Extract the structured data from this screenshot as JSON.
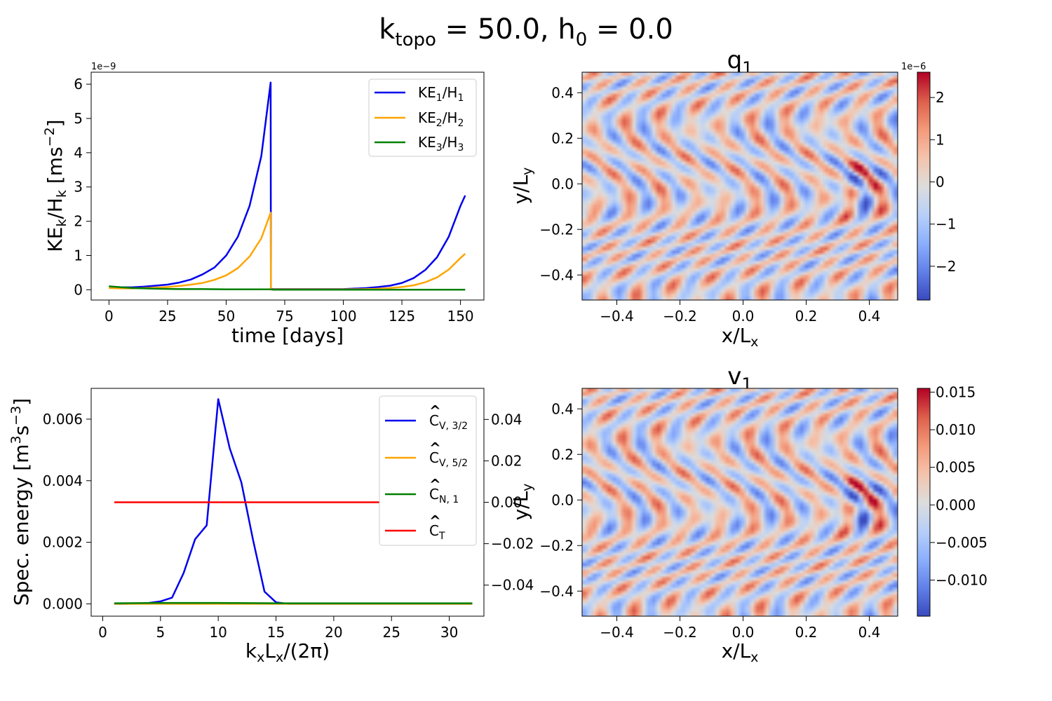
{
  "figure_title": {
    "main": "k",
    "sub1": "topo",
    "rest": " = 50.0, h",
    "sub2": "0",
    "rest2": " = 0.0"
  },
  "chart_data": [
    {
      "type": "line",
      "xlabel": "time   [days]",
      "ylabel": {
        "a": "KE",
        "sub1": "k",
        "b": "/H",
        "sub2": "k",
        "c": "   [ms",
        "sup": "−2",
        "d": "]"
      },
      "offset_text": "1e−9",
      "xlim": [
        -7.6,
        160
      ],
      "ylim": [
        -0.3,
        6.35
      ],
      "xticks": [
        0,
        25,
        50,
        75,
        100,
        125,
        150
      ],
      "yticks": [
        0,
        1,
        2,
        3,
        4,
        5,
        6
      ],
      "grid": false,
      "legend_position": "top-right",
      "series": [
        {
          "name": {
            "a": "KE",
            "s1": "1",
            "b": "/H",
            "s2": "1"
          },
          "color": "#0000ee",
          "x": [
            0,
            5,
            10,
            15,
            20,
            25,
            30,
            35,
            40,
            45,
            50,
            55,
            60,
            65,
            69,
            69.1,
            70,
            80,
            90,
            100,
            110,
            115,
            120,
            125,
            130,
            135,
            140,
            145,
            150,
            152
          ],
          "y": [
            0.1,
            0.07,
            0.07,
            0.09,
            0.12,
            0.15,
            0.21,
            0.3,
            0.45,
            0.65,
            1.0,
            1.55,
            2.45,
            3.9,
            6.05,
            0.03,
            0.02,
            0.02,
            0.02,
            0.02,
            0.05,
            0.08,
            0.12,
            0.2,
            0.34,
            0.58,
            0.95,
            1.55,
            2.45,
            2.75
          ]
        },
        {
          "name": {
            "a": "KE",
            "s1": "2",
            "b": "/H",
            "s2": "2"
          },
          "color": "#ffa500",
          "x": [
            0,
            5,
            10,
            15,
            20,
            25,
            30,
            35,
            40,
            45,
            50,
            55,
            60,
            65,
            69,
            69.1,
            70,
            80,
            90,
            100,
            110,
            115,
            120,
            125,
            130,
            135,
            140,
            145,
            150,
            152
          ],
          "y": [
            0.05,
            0.04,
            0.04,
            0.05,
            0.06,
            0.08,
            0.11,
            0.15,
            0.2,
            0.29,
            0.42,
            0.63,
            0.97,
            1.5,
            2.25,
            0.01,
            0.01,
            0.01,
            0.01,
            0.01,
            0.02,
            0.03,
            0.05,
            0.08,
            0.13,
            0.22,
            0.36,
            0.59,
            0.93,
            1.05
          ]
        },
        {
          "name": {
            "a": "KE",
            "s1": "3",
            "b": "/H",
            "s2": "3"
          },
          "color": "#008000",
          "x": [
            0,
            10,
            20,
            30,
            40,
            50,
            60,
            69,
            70,
            90,
            110,
            130,
            152
          ],
          "y": [
            0.1,
            0.05,
            0.03,
            0.02,
            0.02,
            0.01,
            0.01,
            0.01,
            0.0,
            0.0,
            0.0,
            0.0,
            0.0
          ]
        }
      ]
    },
    {
      "type": "heatmap",
      "title": {
        "a": "q",
        "sub": "1"
      },
      "xlabel": {
        "a": "x/L",
        "sub": "x"
      },
      "ylabel": {
        "a": "y/L",
        "sub": "y"
      },
      "xlim": [
        -0.51,
        0.49
      ],
      "ylim": [
        -0.51,
        0.49
      ],
      "xticks": [
        "−0.4",
        "−0.2",
        "0.0",
        "0.2",
        "0.4"
      ],
      "yticks": [
        "−0.4",
        "−0.2",
        "0.0",
        "0.2",
        "0.4"
      ],
      "colormap": "coolwarm",
      "colorbar": {
        "offset_text": "1e−6",
        "range": [
          -2.8,
          2.6
        ],
        "ticks": [
          "2",
          "1",
          "0",
          "−1",
          "−2"
        ],
        "tick_values": [
          2,
          1,
          0,
          -1,
          -2
        ]
      }
    },
    {
      "type": "line",
      "xlabel": {
        "a": "k",
        "s1": "x",
        "b": "L",
        "s2": "x",
        "c": "/(2π)"
      },
      "ylabel": {
        "a": "Spec.  energy   [m",
        "sup1": "3",
        "b": "s",
        "sup2": "−3",
        "c": "]"
      },
      "xlim": [
        -1,
        33
      ],
      "ylim": [
        -0.0004,
        0.007
      ],
      "xticks": [
        0,
        5,
        10,
        15,
        20,
        25,
        30
      ],
      "yticks": [
        "0.000",
        "0.002",
        "0.004",
        "0.006"
      ],
      "ytick_values": [
        0,
        0.002,
        0.004,
        0.006
      ],
      "secondary_axis": {
        "label": {
          "a": "y/L",
          "sub": "y"
        },
        "ylim": [
          -0.055,
          0.055
        ],
        "yticks": [
          "0.04",
          "0.02",
          "0.00",
          "−0.02",
          "−0.04"
        ],
        "ytick_values": [
          0.04,
          0.02,
          0.0,
          -0.02,
          -0.04
        ]
      },
      "grid": false,
      "legend_position": "top-right",
      "series": [
        {
          "name": {
            "a": "C",
            "sub": "V, 3/2"
          },
          "color": "#0000ee",
          "x": [
            1,
            2,
            3,
            4,
            5,
            6,
            7,
            8,
            9,
            10,
            11,
            12,
            13,
            14,
            15,
            16,
            17,
            20,
            25,
            30,
            32
          ],
          "y": [
            0.0,
            0.0,
            1e-05,
            3e-05,
            8e-05,
            0.0002,
            0.001,
            0.0021,
            0.00255,
            0.00665,
            0.00505,
            0.00395,
            0.0021,
            0.0004,
            5e-05,
            0.0,
            0.0,
            0.0,
            0.0,
            0.0,
            0.0
          ]
        },
        {
          "name": {
            "a": "C",
            "sub": "V, 5/2"
          },
          "color": "#ffa500",
          "x": [
            1,
            32
          ],
          "y": [
            0.0,
            0.0
          ]
        },
        {
          "name": {
            "a": "C",
            "sub": "N, 1"
          },
          "color": "#008000",
          "x": [
            1,
            5,
            10,
            15,
            20,
            25,
            32
          ],
          "y": [
            2e-05,
            3e-05,
            3e-05,
            2e-05,
            2e-05,
            2e-05,
            2e-05
          ]
        },
        {
          "name": {
            "a": "C",
            "sub": "T"
          },
          "color": "#ff0000",
          "x": [
            1,
            32
          ],
          "y": [
            0.0033,
            0.0033
          ]
        }
      ]
    },
    {
      "type": "heatmap",
      "title": {
        "a": "v",
        "sub": "1"
      },
      "xlabel": {
        "a": "x/L",
        "sub": "x"
      },
      "ylabel": {
        "a": "y/L",
        "sub": "y"
      },
      "xlim": [
        -0.51,
        0.49
      ],
      "ylim": [
        -0.51,
        0.49
      ],
      "xticks": [
        "−0.4",
        "−0.2",
        "0.0",
        "0.2",
        "0.4"
      ],
      "yticks": [
        "−0.4",
        "−0.2",
        "0.0",
        "0.2",
        "0.4"
      ],
      "colormap": "coolwarm",
      "colorbar": {
        "range": [
          -0.0148,
          0.0155
        ],
        "ticks": [
          "0.015",
          "0.010",
          "0.005",
          "0.000",
          "−0.005",
          "−0.010"
        ],
        "tick_values": [
          0.015,
          0.01,
          0.005,
          0.0,
          -0.005,
          -0.01
        ]
      }
    }
  ]
}
